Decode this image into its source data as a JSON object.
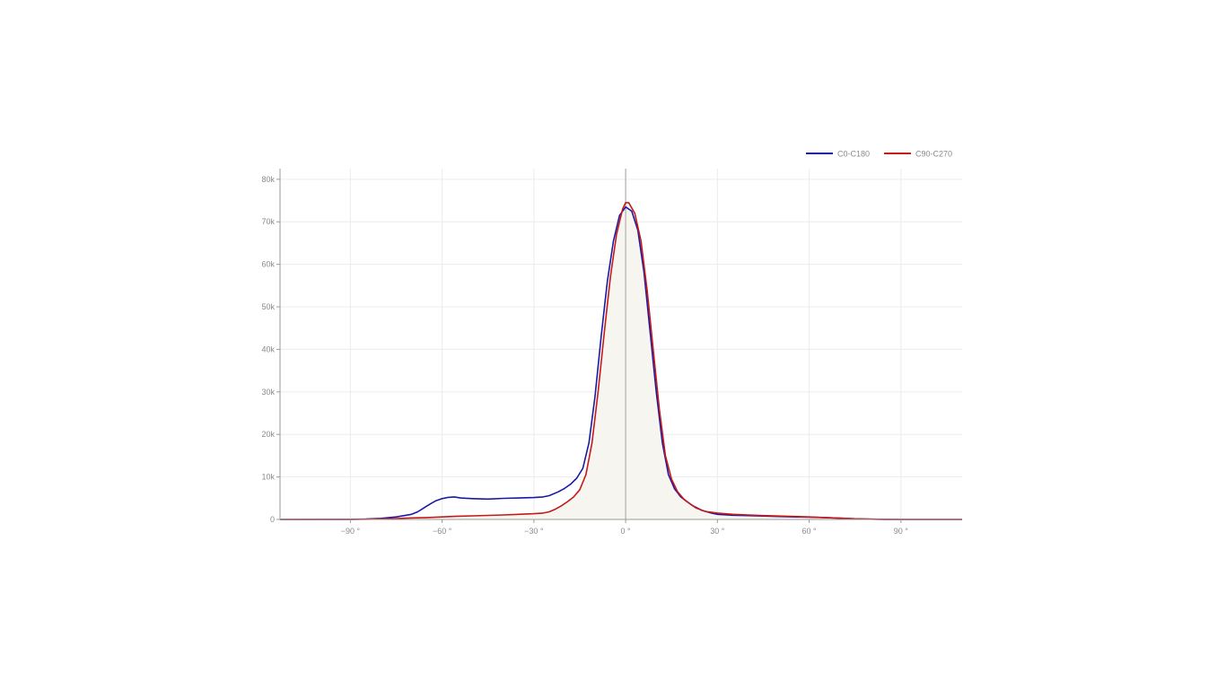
{
  "chart_data": {
    "type": "line",
    "title": "",
    "xlabel": "",
    "ylabel": "",
    "xlim": [
      -113,
      110
    ],
    "ylim": [
      0,
      82500
    ],
    "grid": true,
    "legend_position": "top-right",
    "x_ticks": [
      -90,
      -60,
      -30,
      0,
      30,
      60,
      90
    ],
    "x_tick_labels": [
      "−90 °",
      "−60 °",
      "−30 °",
      "0 °",
      "30 °",
      "60 °",
      "90 °"
    ],
    "y_ticks": [
      0,
      10000,
      20000,
      30000,
      40000,
      50000,
      60000,
      70000,
      80000
    ],
    "y_tick_labels": [
      "0",
      "10k",
      "20k",
      "30k",
      "40k",
      "50k",
      "60k",
      "70k",
      "80k"
    ],
    "series": [
      {
        "name": "C0-C180",
        "color": "#1a1aa6",
        "filled": false,
        "points": [
          [
            -113,
            0
          ],
          [
            -90,
            20
          ],
          [
            -85,
            80
          ],
          [
            -80,
            250
          ],
          [
            -75,
            600
          ],
          [
            -70,
            1200
          ],
          [
            -68,
            1800
          ],
          [
            -66,
            2700
          ],
          [
            -64,
            3600
          ],
          [
            -62,
            4400
          ],
          [
            -60,
            4900
          ],
          [
            -58,
            5200
          ],
          [
            -56,
            5300
          ],
          [
            -54,
            5050
          ],
          [
            -50,
            4900
          ],
          [
            -45,
            4800
          ],
          [
            -40,
            4950
          ],
          [
            -35,
            5050
          ],
          [
            -30,
            5150
          ],
          [
            -27,
            5300
          ],
          [
            -25,
            5600
          ],
          [
            -22,
            6500
          ],
          [
            -20,
            7300
          ],
          [
            -18,
            8300
          ],
          [
            -16,
            9700
          ],
          [
            -14,
            12000
          ],
          [
            -12,
            18000
          ],
          [
            -10,
            29000
          ],
          [
            -8,
            43000
          ],
          [
            -6,
            56000
          ],
          [
            -4,
            65500
          ],
          [
            -2,
            71500
          ],
          [
            0,
            73500
          ],
          [
            2,
            72500
          ],
          [
            4,
            68000
          ],
          [
            6,
            58000
          ],
          [
            8,
            44000
          ],
          [
            10,
            30000
          ],
          [
            12,
            18000
          ],
          [
            14,
            10500
          ],
          [
            16,
            7200
          ],
          [
            18,
            5300
          ],
          [
            20,
            4200
          ],
          [
            22,
            3200
          ],
          [
            25,
            2100
          ],
          [
            28,
            1500
          ],
          [
            30,
            1200
          ],
          [
            35,
            1000
          ],
          [
            40,
            900
          ],
          [
            45,
            800
          ],
          [
            50,
            700
          ],
          [
            55,
            600
          ],
          [
            60,
            550
          ],
          [
            65,
            450
          ],
          [
            70,
            300
          ],
          [
            75,
            150
          ],
          [
            80,
            60
          ],
          [
            85,
            20
          ],
          [
            90,
            0
          ],
          [
            110,
            0
          ]
        ]
      },
      {
        "name": "C90-C270",
        "color": "#c41a1a",
        "filled": true,
        "fill_color": "#f7f5f0",
        "points": [
          [
            -113,
            0
          ],
          [
            -90,
            10
          ],
          [
            -85,
            40
          ],
          [
            -80,
            120
          ],
          [
            -75,
            220
          ],
          [
            -70,
            350
          ],
          [
            -65,
            450
          ],
          [
            -60,
            600
          ],
          [
            -55,
            750
          ],
          [
            -50,
            850
          ],
          [
            -45,
            950
          ],
          [
            -40,
            1050
          ],
          [
            -35,
            1200
          ],
          [
            -30,
            1350
          ],
          [
            -27,
            1500
          ],
          [
            -25,
            1800
          ],
          [
            -23,
            2400
          ],
          [
            -21,
            3200
          ],
          [
            -19,
            4200
          ],
          [
            -17,
            5300
          ],
          [
            -15,
            7000
          ],
          [
            -13,
            10500
          ],
          [
            -11,
            18000
          ],
          [
            -9,
            30000
          ],
          [
            -7,
            44000
          ],
          [
            -5,
            57000
          ],
          [
            -3,
            67000
          ],
          [
            -1,
            73000
          ],
          [
            0,
            74500
          ],
          [
            1,
            74500
          ],
          [
            3,
            72000
          ],
          [
            5,
            65500
          ],
          [
            7,
            54000
          ],
          [
            9,
            40000
          ],
          [
            11,
            26000
          ],
          [
            13,
            15000
          ],
          [
            15,
            9500
          ],
          [
            17,
            6500
          ],
          [
            19,
            4800
          ],
          [
            21,
            3700
          ],
          [
            23,
            2700
          ],
          [
            26,
            1900
          ],
          [
            30,
            1500
          ],
          [
            35,
            1200
          ],
          [
            40,
            1050
          ],
          [
            45,
            900
          ],
          [
            50,
            800
          ],
          [
            55,
            700
          ],
          [
            60,
            600
          ],
          [
            65,
            450
          ],
          [
            70,
            300
          ],
          [
            75,
            150
          ],
          [
            80,
            60
          ],
          [
            85,
            20
          ],
          [
            90,
            0
          ],
          [
            110,
            0
          ]
        ]
      }
    ]
  }
}
